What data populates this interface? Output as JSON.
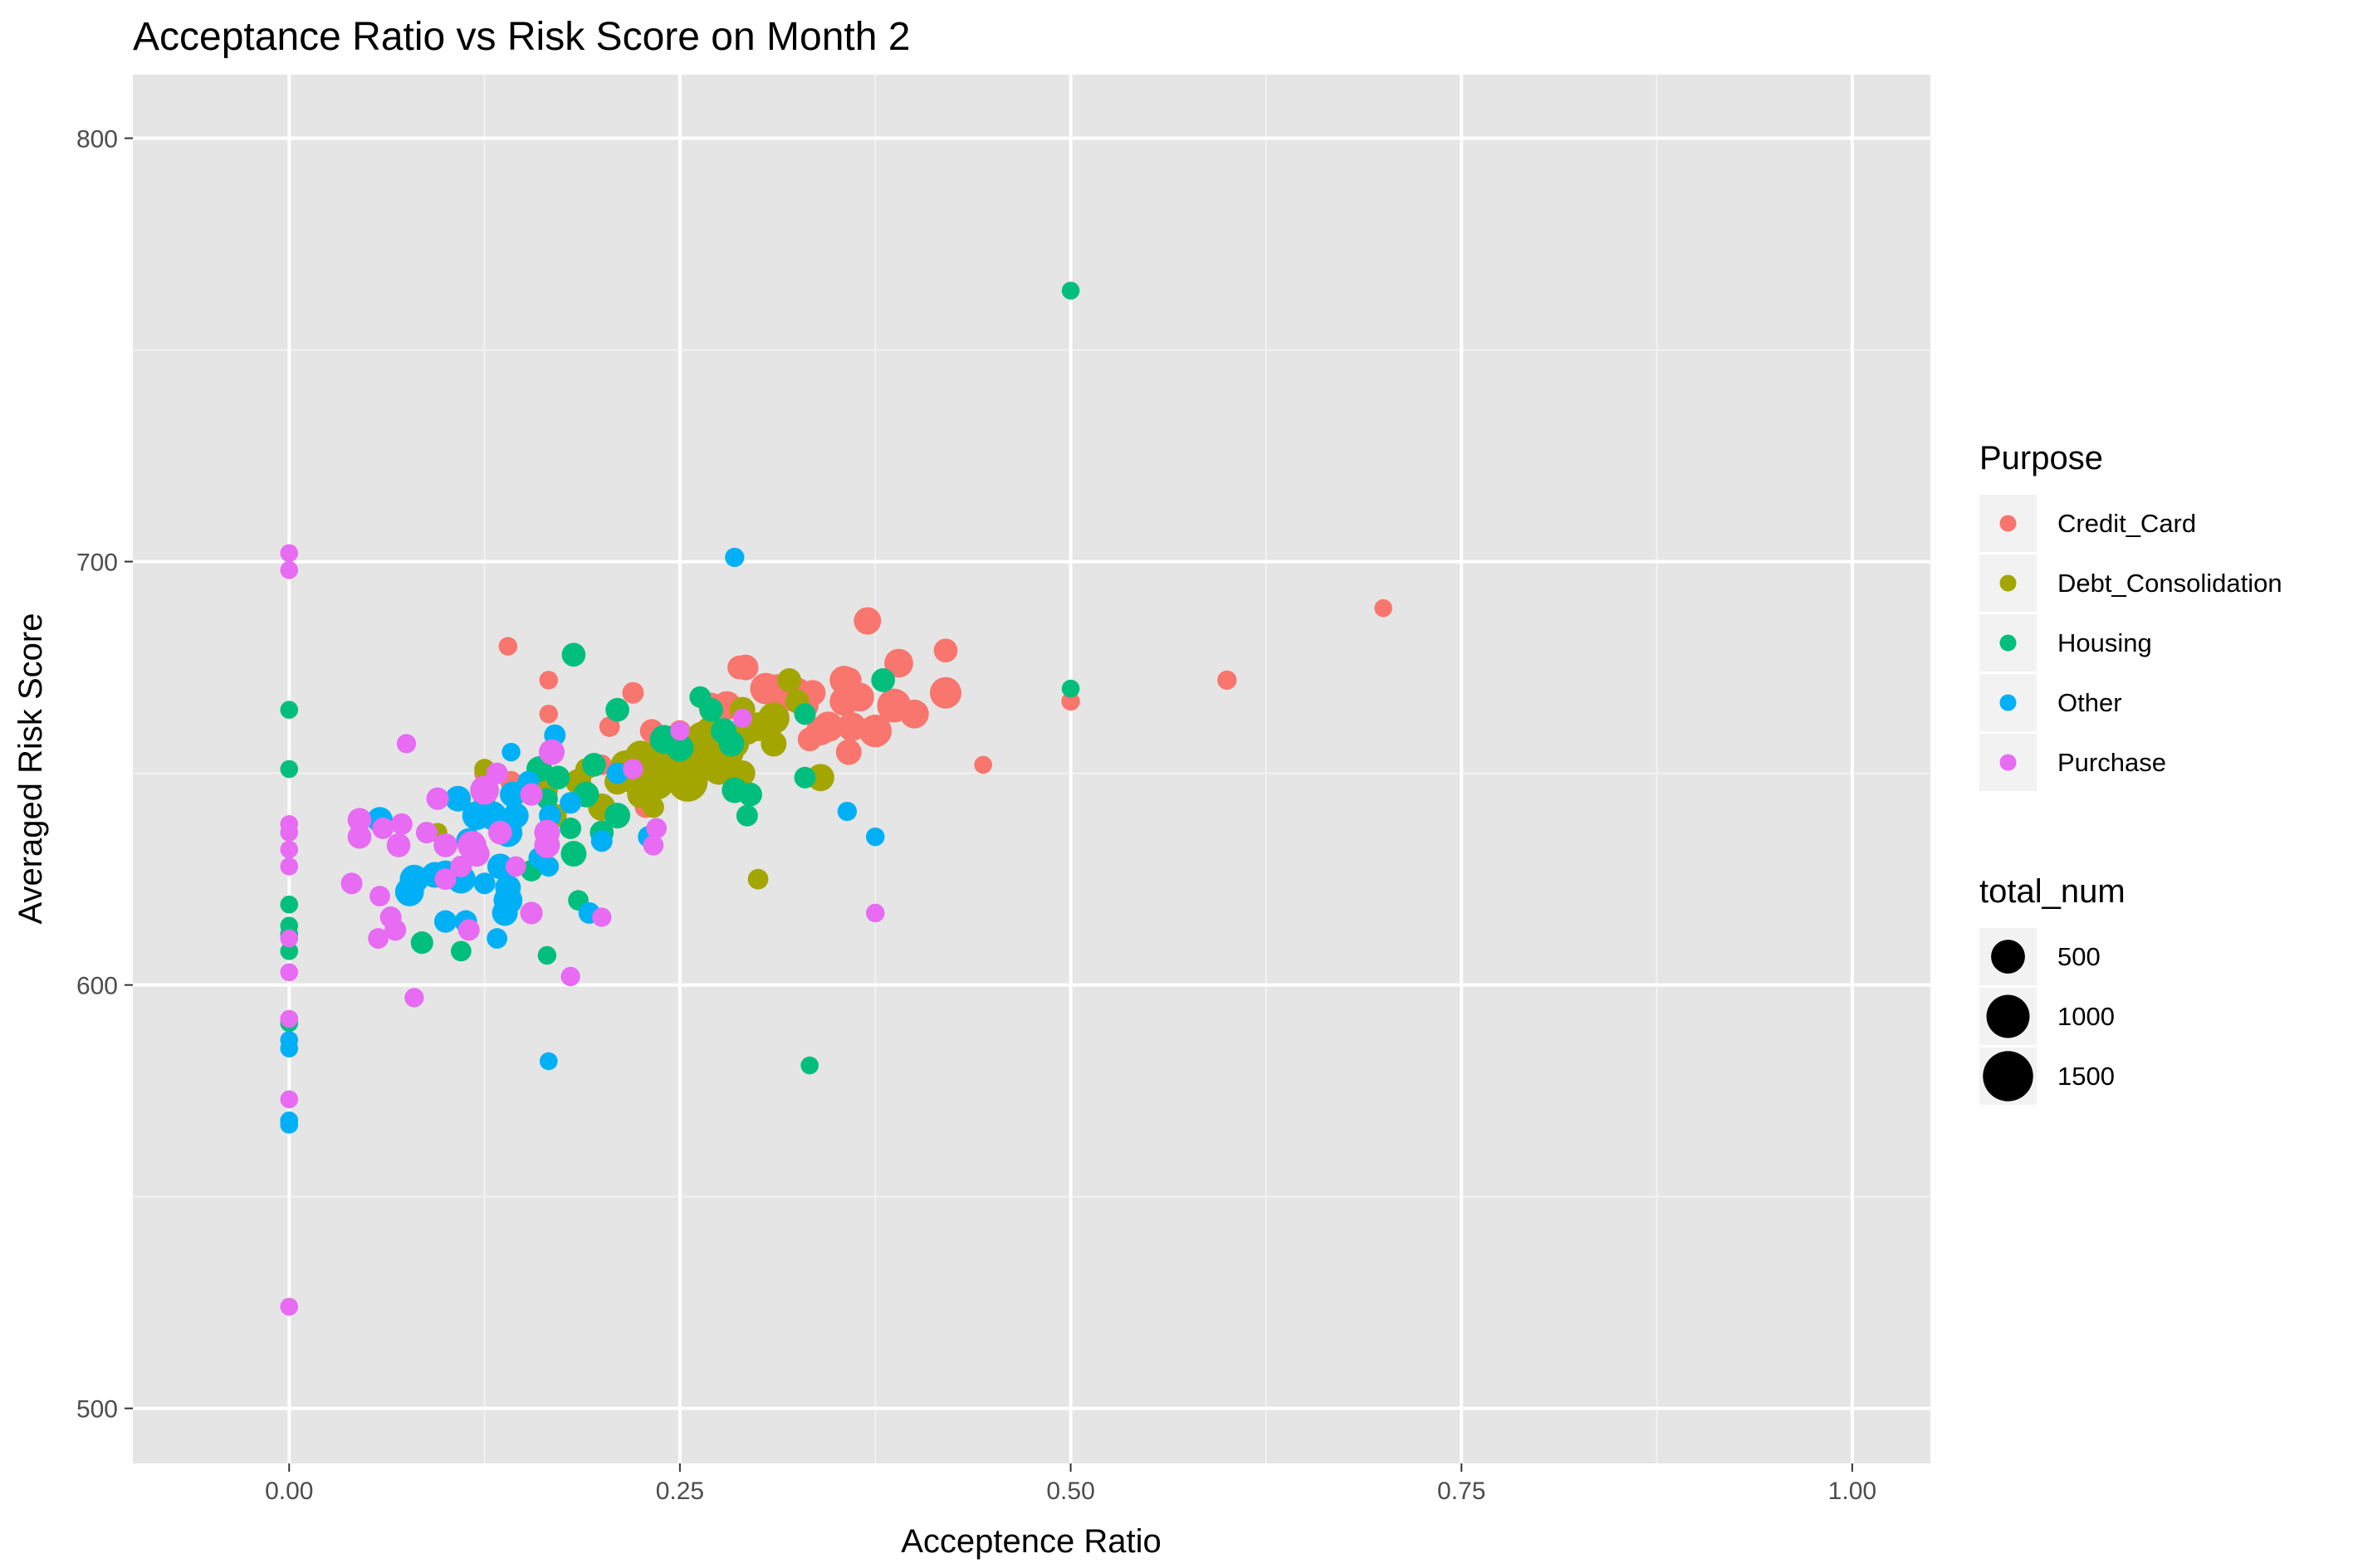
{
  "chart_data": {
    "type": "scatter",
    "title": "Acceptance Ratio vs Risk Score on Month 2",
    "xlabel": "Acceptence Ratio",
    "ylabel": "Averaged Risk Score",
    "xlim": [
      -0.1,
      1.05
    ],
    "ylim": [
      487,
      815
    ],
    "x_ticks": [
      0.0,
      0.25,
      0.5,
      0.75,
      1.0
    ],
    "x_tick_labels": [
      "0.00",
      "0.25",
      "0.50",
      "0.75",
      "1.00"
    ],
    "y_ticks": [
      500,
      600,
      700,
      800
    ],
    "y_tick_labels": [
      "500",
      "600",
      "700",
      "800"
    ],
    "grid": true,
    "legend_position": "right",
    "color_legend": {
      "title": "Purpose",
      "entries": [
        {
          "name": "Credit_Card",
          "color": "#F8766D"
        },
        {
          "name": "Debt_Consolidation",
          "color": "#A3A500"
        },
        {
          "name": "Housing",
          "color": "#00BF7D"
        },
        {
          "name": "Other",
          "color": "#00B0F6"
        },
        {
          "name": "Purchase",
          "color": "#E76BF3"
        }
      ]
    },
    "size_legend": {
      "title": "total_num",
      "entries": [
        {
          "label": "500",
          "value": 500
        },
        {
          "label": "1000",
          "value": 1000
        },
        {
          "label": "1500",
          "value": 1500
        }
      ]
    },
    "series": [
      {
        "name": "Credit_Card",
        "points": [
          [
            0.7,
            689,
            40
          ],
          [
            0.6,
            672,
            60
          ],
          [
            0.5,
            667,
            50
          ],
          [
            0.444,
            652,
            40
          ],
          [
            0.42,
            679,
            150
          ],
          [
            0.42,
            669,
            400
          ],
          [
            0.4,
            664,
            300
          ],
          [
            0.39,
            676,
            300
          ],
          [
            0.387,
            666,
            500
          ],
          [
            0.37,
            686,
            250
          ],
          [
            0.375,
            660,
            450
          ],
          [
            0.365,
            668,
            300
          ],
          [
            0.355,
            672,
            300
          ],
          [
            0.36,
            661,
            300
          ],
          [
            0.345,
            661,
            350
          ],
          [
            0.355,
            667,
            300
          ],
          [
            0.358,
            655,
            200
          ],
          [
            0.34,
            660,
            300
          ],
          [
            0.335,
            669,
            200
          ],
          [
            0.33,
            666,
            250
          ],
          [
            0.333,
            658,
            150
          ],
          [
            0.325,
            669,
            350
          ],
          [
            0.32,
            668,
            250
          ],
          [
            0.312,
            670,
            300
          ],
          [
            0.305,
            670,
            400
          ],
          [
            0.292,
            675,
            200
          ],
          [
            0.288,
            675,
            150
          ],
          [
            0.28,
            666,
            300
          ],
          [
            0.27,
            666,
            200
          ],
          [
            0.262,
            658,
            150
          ],
          [
            0.25,
            660,
            100
          ],
          [
            0.232,
            660,
            150
          ],
          [
            0.22,
            669,
            100
          ],
          [
            0.228,
            642,
            100
          ],
          [
            0.205,
            661,
            80
          ],
          [
            0.2,
            652,
            80
          ],
          [
            0.166,
            672,
            50
          ],
          [
            0.166,
            664,
            50
          ],
          [
            0.14,
            680,
            50
          ],
          [
            0.125,
            650,
            80
          ],
          [
            0.142,
            648,
            100
          ],
          [
            0.358,
            672,
            200
          ]
        ]
      },
      {
        "name": "Debt_Consolidation",
        "points": [
          [
            0.3,
            625,
            80
          ],
          [
            0.34,
            649,
            250
          ],
          [
            0.32,
            672,
            150
          ],
          [
            0.31,
            663,
            400
          ],
          [
            0.3,
            661,
            300
          ],
          [
            0.293,
            660,
            250
          ],
          [
            0.29,
            650,
            200
          ],
          [
            0.285,
            657,
            300
          ],
          [
            0.28,
            655,
            500
          ],
          [
            0.275,
            651,
            400
          ],
          [
            0.27,
            654,
            500
          ],
          [
            0.27,
            660,
            350
          ],
          [
            0.265,
            658,
            600
          ],
          [
            0.26,
            652,
            700
          ],
          [
            0.255,
            648,
            800
          ],
          [
            0.25,
            651,
            900
          ],
          [
            0.245,
            655,
            600
          ],
          [
            0.24,
            650,
            800
          ],
          [
            0.235,
            648,
            600
          ],
          [
            0.23,
            652,
            500
          ],
          [
            0.225,
            654,
            400
          ],
          [
            0.22,
            649,
            400
          ],
          [
            0.215,
            652,
            300
          ],
          [
            0.225,
            645,
            250
          ],
          [
            0.21,
            648,
            200
          ],
          [
            0.2,
            642,
            250
          ],
          [
            0.19,
            645,
            200
          ],
          [
            0.185,
            648,
            200
          ],
          [
            0.17,
            640,
            150
          ],
          [
            0.165,
            646,
            100
          ],
          [
            0.158,
            648,
            100
          ],
          [
            0.233,
            642,
            100
          ],
          [
            0.095,
            636,
            60
          ],
          [
            0.125,
            651,
            80
          ],
          [
            0.19,
            651,
            100
          ],
          [
            0.31,
            657,
            200
          ],
          [
            0.29,
            665,
            200
          ],
          [
            0.282,
            656,
            200
          ],
          [
            0.325,
            667,
            150
          ],
          [
            0.27,
            657,
            300
          ],
          [
            0.248,
            656,
            400
          ],
          [
            0.24,
            657,
            350
          ],
          [
            0.258,
            655,
            300
          ]
        ]
      },
      {
        "name": "Housing",
        "points": [
          [
            0.5,
            764,
            40
          ],
          [
            0.5,
            670,
            40
          ],
          [
            0.333,
            581,
            40
          ],
          [
            0.0,
            665,
            40
          ],
          [
            0.0,
            651,
            40
          ],
          [
            0.0,
            619,
            40
          ],
          [
            0.0,
            614,
            40
          ],
          [
            0.0,
            612,
            40
          ],
          [
            0.0,
            608,
            40
          ],
          [
            0.0,
            591,
            40
          ],
          [
            0.38,
            672,
            150
          ],
          [
            0.33,
            649,
            100
          ],
          [
            0.33,
            664,
            100
          ],
          [
            0.295,
            645,
            150
          ],
          [
            0.293,
            640,
            100
          ],
          [
            0.285,
            646,
            200
          ],
          [
            0.283,
            657,
            200
          ],
          [
            0.278,
            660,
            200
          ],
          [
            0.27,
            665,
            150
          ],
          [
            0.263,
            668,
            100
          ],
          [
            0.25,
            656,
            250
          ],
          [
            0.24,
            658,
            300
          ],
          [
            0.21,
            665,
            150
          ],
          [
            0.21,
            640,
            200
          ],
          [
            0.2,
            636,
            150
          ],
          [
            0.195,
            652,
            150
          ],
          [
            0.19,
            645,
            200
          ],
          [
            0.182,
            678,
            150
          ],
          [
            0.182,
            631,
            200
          ],
          [
            0.18,
            637,
            100
          ],
          [
            0.172,
            649,
            150
          ],
          [
            0.165,
            644,
            100
          ],
          [
            0.16,
            651,
            200
          ],
          [
            0.155,
            627,
            100
          ],
          [
            0.165,
            607,
            50
          ],
          [
            0.185,
            620,
            80
          ],
          [
            0.11,
            608,
            80
          ],
          [
            0.085,
            610,
            120
          ],
          [
            0.125,
            644,
            100
          ]
        ]
      },
      {
        "name": "Other",
        "points": [
          [
            0.285,
            701,
            60
          ],
          [
            0.357,
            641,
            60
          ],
          [
            0.375,
            635,
            50
          ],
          [
            0.166,
            582,
            40
          ],
          [
            0.0,
            587,
            40
          ],
          [
            0.0,
            585,
            40
          ],
          [
            0.0,
            568,
            40
          ],
          [
            0.0,
            567,
            40
          ],
          [
            0.23,
            635,
            100
          ],
          [
            0.21,
            650,
            100
          ],
          [
            0.2,
            634,
            100
          ],
          [
            0.192,
            617,
            100
          ],
          [
            0.18,
            643,
            100
          ],
          [
            0.17,
            659,
            100
          ],
          [
            0.167,
            640,
            120
          ],
          [
            0.166,
            628,
            80
          ],
          [
            0.16,
            630,
            100
          ],
          [
            0.153,
            648,
            100
          ],
          [
            0.143,
            645,
            200
          ],
          [
            0.142,
            655,
            50
          ],
          [
            0.14,
            636,
            300
          ],
          [
            0.14,
            620,
            300
          ],
          [
            0.138,
            617,
            200
          ],
          [
            0.135,
            628,
            200
          ],
          [
            0.133,
            611,
            80
          ],
          [
            0.13,
            640,
            300
          ],
          [
            0.125,
            624,
            100
          ],
          [
            0.12,
            640,
            300
          ],
          [
            0.115,
            634,
            200
          ],
          [
            0.113,
            615,
            120
          ],
          [
            0.11,
            625,
            300
          ],
          [
            0.108,
            644,
            200
          ],
          [
            0.1,
            626,
            300
          ],
          [
            0.1,
            615,
            120
          ],
          [
            0.093,
            626,
            200
          ],
          [
            0.08,
            625,
            300
          ],
          [
            0.077,
            622,
            300
          ],
          [
            0.058,
            639,
            200
          ],
          [
            0.14,
            623,
            200
          ],
          [
            0.145,
            640,
            200
          ]
        ]
      },
      {
        "name": "Purchase",
        "points": [
          [
            0.0,
            702,
            40
          ],
          [
            0.0,
            698,
            40
          ],
          [
            0.0,
            638,
            40
          ],
          [
            0.0,
            636,
            40
          ],
          [
            0.0,
            632,
            40
          ],
          [
            0.0,
            628,
            40
          ],
          [
            0.0,
            611,
            40
          ],
          [
            0.0,
            603,
            40
          ],
          [
            0.0,
            592,
            40
          ],
          [
            0.0,
            573,
            40
          ],
          [
            0.0,
            524,
            40
          ],
          [
            0.375,
            617,
            50
          ],
          [
            0.29,
            663,
            60
          ],
          [
            0.25,
            660,
            60
          ],
          [
            0.235,
            637,
            80
          ],
          [
            0.233,
            633,
            80
          ],
          [
            0.22,
            651,
            80
          ],
          [
            0.2,
            616,
            60
          ],
          [
            0.18,
            602,
            60
          ],
          [
            0.168,
            655,
            200
          ],
          [
            0.165,
            636,
            200
          ],
          [
            0.165,
            633,
            200
          ],
          [
            0.155,
            617,
            120
          ],
          [
            0.145,
            628,
            80
          ],
          [
            0.135,
            636,
            150
          ],
          [
            0.133,
            650,
            100
          ],
          [
            0.125,
            646,
            300
          ],
          [
            0.12,
            631,
            200
          ],
          [
            0.117,
            633,
            300
          ],
          [
            0.115,
            613,
            100
          ],
          [
            0.11,
            628,
            100
          ],
          [
            0.1,
            625,
            100
          ],
          [
            0.095,
            644,
            120
          ],
          [
            0.088,
            636,
            100
          ],
          [
            0.08,
            597,
            60
          ],
          [
            0.075,
            657,
            60
          ],
          [
            0.072,
            638,
            100
          ],
          [
            0.07,
            633,
            150
          ],
          [
            0.068,
            613,
            100
          ],
          [
            0.065,
            616,
            100
          ],
          [
            0.06,
            637,
            100
          ],
          [
            0.058,
            621,
            80
          ],
          [
            0.057,
            611,
            80
          ],
          [
            0.045,
            639,
            150
          ],
          [
            0.045,
            635,
            150
          ],
          [
            0.04,
            624,
            100
          ],
          [
            0.1,
            633,
            150
          ],
          [
            0.155,
            645,
            120
          ]
        ]
      }
    ]
  }
}
